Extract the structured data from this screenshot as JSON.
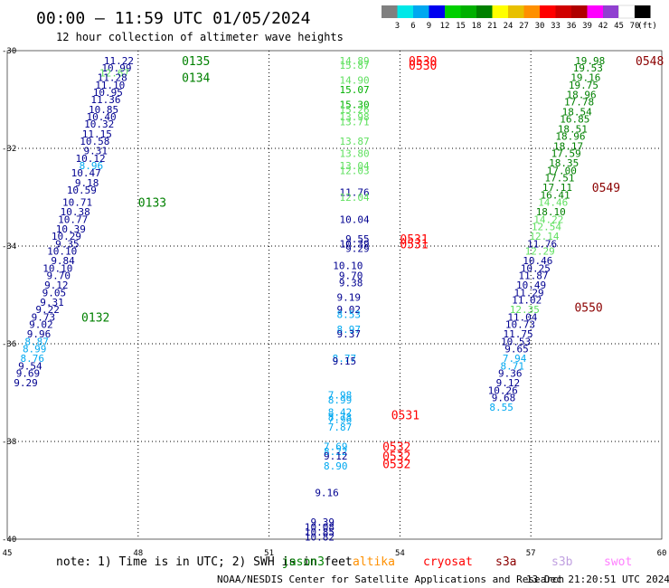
{
  "header": {
    "title": "00:00 – 11:59 UTC 01/05/2024",
    "subtitle": "12 hour collection of altimeter wave heights"
  },
  "legend": {
    "colors": [
      "#808080",
      "#00e8e8",
      "#00a8f0",
      "#0000f0",
      "#00d000",
      "#00b000",
      "#008000",
      "#ffff00",
      "#e8c000",
      "#ff9000",
      "#ff0000",
      "#d00000",
      "#b00000",
      "#ff00ff",
      "#9040d0",
      "#ffffff",
      "#000000"
    ],
    "ticks": [
      "3",
      "6",
      "9",
      "12",
      "15",
      "18",
      "21",
      "24",
      "27",
      "30",
      "33",
      "36",
      "39",
      "42",
      "45",
      "70"
    ],
    "unit": "(ft)"
  },
  "chart_data": {
    "type": "scatter",
    "xlim": [
      45,
      60
    ],
    "ylim": [
      -40,
      -30
    ],
    "xticks": [
      "45",
      "48",
      "51",
      "54",
      "57",
      "60"
    ],
    "yticks": [
      "-30",
      "-32",
      "-34",
      "-36",
      "-38",
      "-40"
    ],
    "grid": true,
    "series": [
      {
        "name": "jason3",
        "color": "#008000",
        "points": [
          {
            "x": 47.9,
            "y": -30.2,
            "v": "11.22",
            "c": "#000090"
          },
          {
            "x": 47.85,
            "y": -30.35,
            "v": "10.99",
            "c": "#000090"
          },
          {
            "x": 47.8,
            "y": -30.45,
            "v": "12.67",
            "c": "#60e060"
          },
          {
            "x": 47.75,
            "y": -30.55,
            "v": "11.28",
            "c": "#000090"
          },
          {
            "x": 47.7,
            "y": -30.7,
            "v": "11.10",
            "c": "#000090"
          },
          {
            "x": 47.65,
            "y": -30.85,
            "v": "10.95",
            "c": "#000090"
          },
          {
            "x": 47.6,
            "y": -31.0,
            "v": "11.36",
            "c": "#000090"
          },
          {
            "x": 47.55,
            "y": -31.2,
            "v": "10.85",
            "c": "#000090"
          },
          {
            "x": 47.5,
            "y": -31.35,
            "v": "10.40",
            "c": "#000090"
          },
          {
            "x": 47.45,
            "y": -31.5,
            "v": "10.32",
            "c": "#000090"
          },
          {
            "x": 47.4,
            "y": -31.7,
            "v": "11.15",
            "c": "#000090"
          },
          {
            "x": 47.35,
            "y": -31.85,
            "v": "10.58",
            "c": "#000090"
          },
          {
            "x": 47.3,
            "y": -32.05,
            "v": "9.31",
            "c": "#000090"
          },
          {
            "x": 47.25,
            "y": -32.2,
            "v": "10.12",
            "c": "#000090"
          },
          {
            "x": 47.2,
            "y": -32.35,
            "v": "8.96",
            "c": "#00a8f0"
          },
          {
            "x": 47.15,
            "y": -32.5,
            "v": "10.47",
            "c": "#000090"
          },
          {
            "x": 47.1,
            "y": -32.7,
            "v": "9.18",
            "c": "#000090"
          },
          {
            "x": 47.05,
            "y": -32.85,
            "v": "10.59",
            "c": "#000090"
          },
          {
            "x": 46.95,
            "y": -33.1,
            "v": "10.71",
            "c": "#000090"
          },
          {
            "x": 46.9,
            "y": -33.3,
            "v": "10.38",
            "c": "#000090"
          },
          {
            "x": 46.85,
            "y": -33.45,
            "v": "10.77",
            "c": "#000090"
          },
          {
            "x": 46.8,
            "y": -33.65,
            "v": "10.39",
            "c": "#000090"
          },
          {
            "x": 46.7,
            "y": -33.8,
            "v": "10.29",
            "c": "#000090"
          },
          {
            "x": 46.65,
            "y": -33.95,
            "v": "9.35",
            "c": "#000090"
          },
          {
            "x": 46.6,
            "y": -34.1,
            "v": "10.10",
            "c": "#000090"
          },
          {
            "x": 46.55,
            "y": -34.3,
            "v": "9.84",
            "c": "#000090"
          },
          {
            "x": 46.5,
            "y": -34.45,
            "v": "10.10",
            "c": "#000090"
          },
          {
            "x": 46.45,
            "y": -34.6,
            "v": "9.70",
            "c": "#000090"
          },
          {
            "x": 46.4,
            "y": -34.8,
            "v": "9.12",
            "c": "#000090"
          },
          {
            "x": 46.35,
            "y": -34.95,
            "v": "9.05",
            "c": "#000090"
          },
          {
            "x": 46.3,
            "y": -35.15,
            "v": "9.31",
            "c": "#000090"
          },
          {
            "x": 46.2,
            "y": -35.3,
            "v": "9.22",
            "c": "#000090"
          },
          {
            "x": 46.1,
            "y": -35.45,
            "v": "9.73",
            "c": "#000090"
          },
          {
            "x": 46.05,
            "y": -35.6,
            "v": "9.02",
            "c": "#000090"
          },
          {
            "x": 46.0,
            "y": -35.8,
            "v": "9.96",
            "c": "#000090"
          },
          {
            "x": 45.95,
            "y": -35.95,
            "v": "8.87",
            "c": "#00a8f0"
          },
          {
            "x": 45.9,
            "y": -36.1,
            "v": "8.99",
            "c": "#00a8f0"
          },
          {
            "x": 45.85,
            "y": -36.3,
            "v": "8.76",
            "c": "#00a8f0"
          },
          {
            "x": 45.8,
            "y": -36.45,
            "v": "9.54",
            "c": "#000090"
          },
          {
            "x": 45.75,
            "y": -36.6,
            "v": "9.69",
            "c": "#000090"
          },
          {
            "x": 45.7,
            "y": -36.8,
            "v": "9.29",
            "c": "#000090"
          }
        ]
      },
      {
        "name": "cryosat",
        "color": "#ff0000",
        "points": [
          {
            "x": 53.3,
            "y": -30.2,
            "v": "14.89",
            "c": "#60e060"
          },
          {
            "x": 53.3,
            "y": -30.3,
            "v": "15.87",
            "c": "#60e060"
          },
          {
            "x": 53.3,
            "y": -30.6,
            "v": "14.90",
            "c": "#60e060"
          },
          {
            "x": 53.3,
            "y": -30.8,
            "v": "15.07",
            "c": "#00b000"
          },
          {
            "x": 53.3,
            "y": -31.1,
            "v": "15.30",
            "c": "#00b000"
          },
          {
            "x": 53.3,
            "y": -31.2,
            "v": "15.26",
            "c": "#60e060"
          },
          {
            "x": 53.3,
            "y": -31.35,
            "v": "13.98",
            "c": "#60e060"
          },
          {
            "x": 53.3,
            "y": -31.45,
            "v": "13.71",
            "c": "#60e060"
          },
          {
            "x": 53.3,
            "y": -31.85,
            "v": "13.87",
            "c": "#60e060"
          },
          {
            "x": 53.3,
            "y": -32.1,
            "v": "13.80",
            "c": "#60e060"
          },
          {
            "x": 53.3,
            "y": -32.35,
            "v": "13.04",
            "c": "#60e060"
          },
          {
            "x": 53.3,
            "y": -32.45,
            "v": "12.03",
            "c": "#60e060"
          },
          {
            "x": 53.3,
            "y": -32.9,
            "v": "11.76",
            "c": "#000090"
          },
          {
            "x": 53.3,
            "y": -33.0,
            "v": "12.04",
            "c": "#60e060"
          },
          {
            "x": 53.3,
            "y": -33.45,
            "v": "10.04",
            "c": "#000090"
          },
          {
            "x": 53.3,
            "y": -33.85,
            "v": "9.55",
            "c": "#000090"
          },
          {
            "x": 53.3,
            "y": -33.95,
            "v": "10.39",
            "c": "#000090"
          },
          {
            "x": 53.3,
            "y": -34.05,
            "v": "9.29",
            "c": "#000090"
          },
          {
            "x": 53.15,
            "y": -34.4,
            "v": "10.10",
            "c": "#000090"
          },
          {
            "x": 53.15,
            "y": -34.6,
            "v": "9.70",
            "c": "#000090"
          },
          {
            "x": 53.15,
            "y": -34.75,
            "v": "9.38",
            "c": "#000090"
          },
          {
            "x": 53.1,
            "y": -35.05,
            "v": "9.19",
            "c": "#000090"
          },
          {
            "x": 53.1,
            "y": -35.3,
            "v": "9.02",
            "c": "#000090"
          },
          {
            "x": 53.1,
            "y": -35.4,
            "v": "8.53",
            "c": "#00a8f0"
          },
          {
            "x": 53.1,
            "y": -35.7,
            "v": "8.97",
            "c": "#00a8f0"
          },
          {
            "x": 53.1,
            "y": -35.8,
            "v": "9.37",
            "c": "#000090"
          },
          {
            "x": 53.0,
            "y": -36.3,
            "v": "8.77",
            "c": "#00a8f0"
          },
          {
            "x": 53.0,
            "y": -36.35,
            "v": "9.15",
            "c": "#000090"
          },
          {
            "x": 52.9,
            "y": -37.05,
            "v": "7.98",
            "c": "#00a8f0"
          },
          {
            "x": 52.9,
            "y": -37.15,
            "v": "8.99",
            "c": "#00a8f0"
          },
          {
            "x": 52.9,
            "y": -37.4,
            "v": "8.42",
            "c": "#00a8f0"
          },
          {
            "x": 52.9,
            "y": -37.5,
            "v": "8.73",
            "c": "#00a8f0"
          },
          {
            "x": 52.9,
            "y": -37.55,
            "v": "7.96",
            "c": "#00a8f0"
          },
          {
            "x": 52.9,
            "y": -37.7,
            "v": "7.87",
            "c": "#00a8f0"
          },
          {
            "x": 52.8,
            "y": -38.1,
            "v": "7.69",
            "c": "#00a8f0"
          },
          {
            "x": 52.8,
            "y": -38.2,
            "v": "8.22",
            "c": "#00a8f0"
          },
          {
            "x": 52.8,
            "y": -38.3,
            "v": "9.12",
            "c": "#000090"
          },
          {
            "x": 52.8,
            "y": -38.5,
            "v": "8.90",
            "c": "#00a8f0"
          },
          {
            "x": 52.6,
            "y": -39.05,
            "v": "9.16",
            "c": "#000090"
          },
          {
            "x": 52.5,
            "y": -39.65,
            "v": "9.39",
            "c": "#000090"
          },
          {
            "x": 52.5,
            "y": -39.75,
            "v": "10.08",
            "c": "#000090"
          },
          {
            "x": 52.5,
            "y": -39.85,
            "v": "10.85",
            "c": "#000090"
          },
          {
            "x": 52.5,
            "y": -39.95,
            "v": "10.82",
            "c": "#000090"
          }
        ]
      },
      {
        "name": "s3a",
        "color": "#8b0000",
        "points": [
          {
            "x": 58.7,
            "y": -30.2,
            "v": "19.98",
            "c": "#008000"
          },
          {
            "x": 58.65,
            "y": -30.35,
            "v": "19.53",
            "c": "#008000"
          },
          {
            "x": 58.6,
            "y": -30.55,
            "v": "19.16",
            "c": "#008000"
          },
          {
            "x": 58.55,
            "y": -30.7,
            "v": "19.75",
            "c": "#008000"
          },
          {
            "x": 58.5,
            "y": -30.9,
            "v": "18.96",
            "c": "#008000"
          },
          {
            "x": 58.45,
            "y": -31.05,
            "v": "17.78",
            "c": "#008000"
          },
          {
            "x": 58.4,
            "y": -31.25,
            "v": "18.54",
            "c": "#008000"
          },
          {
            "x": 58.35,
            "y": -31.4,
            "v": "16.85",
            "c": "#008000"
          },
          {
            "x": 58.3,
            "y": -31.6,
            "v": "18.51",
            "c": "#008000"
          },
          {
            "x": 58.25,
            "y": -31.75,
            "v": "18.96",
            "c": "#008000"
          },
          {
            "x": 58.2,
            "y": -31.95,
            "v": "18.17",
            "c": "#008000"
          },
          {
            "x": 58.15,
            "y": -32.1,
            "v": "17.59",
            "c": "#008000"
          },
          {
            "x": 58.1,
            "y": -32.3,
            "v": "18.35",
            "c": "#008000"
          },
          {
            "x": 58.05,
            "y": -32.45,
            "v": "17.00",
            "c": "#008000"
          },
          {
            "x": 58.0,
            "y": -32.6,
            "v": "17.51",
            "c": "#008000"
          },
          {
            "x": 57.95,
            "y": -32.8,
            "v": "17.11",
            "c": "#008000"
          },
          {
            "x": 57.9,
            "y": -32.95,
            "v": "16.41",
            "c": "#008000"
          },
          {
            "x": 57.85,
            "y": -33.1,
            "v": "14.46",
            "c": "#60e060"
          },
          {
            "x": 57.8,
            "y": -33.3,
            "v": "18.10",
            "c": "#008000"
          },
          {
            "x": 57.75,
            "y": -33.45,
            "v": "14.22",
            "c": "#60e060"
          },
          {
            "x": 57.7,
            "y": -33.6,
            "v": "12.54",
            "c": "#60e060"
          },
          {
            "x": 57.65,
            "y": -33.8,
            "v": "12.14",
            "c": "#60e060"
          },
          {
            "x": 57.6,
            "y": -33.95,
            "v": "11.76",
            "c": "#000090"
          },
          {
            "x": 57.55,
            "y": -34.1,
            "v": "12.29",
            "c": "#60e060"
          },
          {
            "x": 57.5,
            "y": -34.3,
            "v": "10.46",
            "c": "#000090"
          },
          {
            "x": 57.45,
            "y": -34.45,
            "v": "10.25",
            "c": "#000090"
          },
          {
            "x": 57.4,
            "y": -34.6,
            "v": "11.87",
            "c": "#000090"
          },
          {
            "x": 57.35,
            "y": -34.8,
            "v": "10.49",
            "c": "#000090"
          },
          {
            "x": 57.3,
            "y": -34.95,
            "v": "11.29",
            "c": "#000090"
          },
          {
            "x": 57.25,
            "y": -35.1,
            "v": "11.02",
            "c": "#000090"
          },
          {
            "x": 57.2,
            "y": -35.3,
            "v": "12.35",
            "c": "#60e060"
          },
          {
            "x": 57.15,
            "y": -35.45,
            "v": "11.04",
            "c": "#000090"
          },
          {
            "x": 57.1,
            "y": -35.6,
            "v": "10.73",
            "c": "#000090"
          },
          {
            "x": 57.05,
            "y": -35.8,
            "v": "11.75",
            "c": "#000090"
          },
          {
            "x": 57.0,
            "y": -35.95,
            "v": "10.53",
            "c": "#000090"
          },
          {
            "x": 56.95,
            "y": -36.1,
            "v": "9.65",
            "c": "#000090"
          },
          {
            "x": 56.9,
            "y": -36.3,
            "v": "7.94",
            "c": "#00a8f0"
          },
          {
            "x": 56.85,
            "y": -36.45,
            "v": "8.71",
            "c": "#00a8f0"
          },
          {
            "x": 56.8,
            "y": -36.6,
            "v": "9.36",
            "c": "#000090"
          },
          {
            "x": 56.75,
            "y": -36.8,
            "v": "9.12",
            "c": "#000090"
          },
          {
            "x": 56.7,
            "y": -36.95,
            "v": "10.26",
            "c": "#000090"
          },
          {
            "x": 56.65,
            "y": -37.1,
            "v": "9.68",
            "c": "#000090"
          },
          {
            "x": 56.6,
            "y": -37.3,
            "v": "8.55",
            "c": "#00a8f0"
          }
        ]
      }
    ],
    "time_labels": [
      {
        "x": 49.0,
        "y": -30.2,
        "text": "0135",
        "color": "#008000"
      },
      {
        "x": 49.0,
        "y": -30.55,
        "text": "0134",
        "color": "#008000"
      },
      {
        "x": 48.0,
        "y": -33.1,
        "text": "0133",
        "color": "#008000"
      },
      {
        "x": 46.7,
        "y": -35.45,
        "text": "0132",
        "color": "#008000"
      },
      {
        "x": 54.2,
        "y": -30.2,
        "text": "0530",
        "color": "#ff0000"
      },
      {
        "x": 54.2,
        "y": -30.3,
        "text": "0530",
        "color": "#ff0000"
      },
      {
        "x": 54.0,
        "y": -33.85,
        "text": "0531",
        "color": "#ff0000"
      },
      {
        "x": 54.0,
        "y": -33.95,
        "text": "0531",
        "color": "#ff0000"
      },
      {
        "x": 53.8,
        "y": -37.45,
        "text": "0531",
        "color": "#ff0000"
      },
      {
        "x": 53.6,
        "y": -38.1,
        "text": "0532",
        "color": "#ff0000"
      },
      {
        "x": 53.6,
        "y": -38.3,
        "text": "0532",
        "color": "#ff0000"
      },
      {
        "x": 53.6,
        "y": -38.45,
        "text": "0532",
        "color": "#ff0000"
      },
      {
        "x": 59.4,
        "y": -30.2,
        "text": "0548",
        "color": "#8b0000"
      },
      {
        "x": 58.4,
        "y": -32.8,
        "text": "0549",
        "color": "#8b0000"
      },
      {
        "x": 58.0,
        "y": -35.25,
        "text": "0550",
        "color": "#8b0000"
      }
    ]
  },
  "footer": {
    "note_prefix": "note:",
    "note_text": "1) Time is in UTC; 2) SWH is in feet",
    "satellites": [
      {
        "name": "jason3",
        "color": "#008000"
      },
      {
        "name": "altika",
        "color": "#ff9000"
      },
      {
        "name": "cryosat",
        "color": "#ff0000"
      },
      {
        "name": "s3a",
        "color": "#8b0000"
      },
      {
        "name": "s3b",
        "color": "#c0a0e0"
      },
      {
        "name": "swot",
        "color": "#ff80ff"
      }
    ],
    "credit": "NOAA/NESDIS Center for Satellite Applications and Research",
    "timestamp": "13 Dec 21:20:51 UTC 2024"
  }
}
